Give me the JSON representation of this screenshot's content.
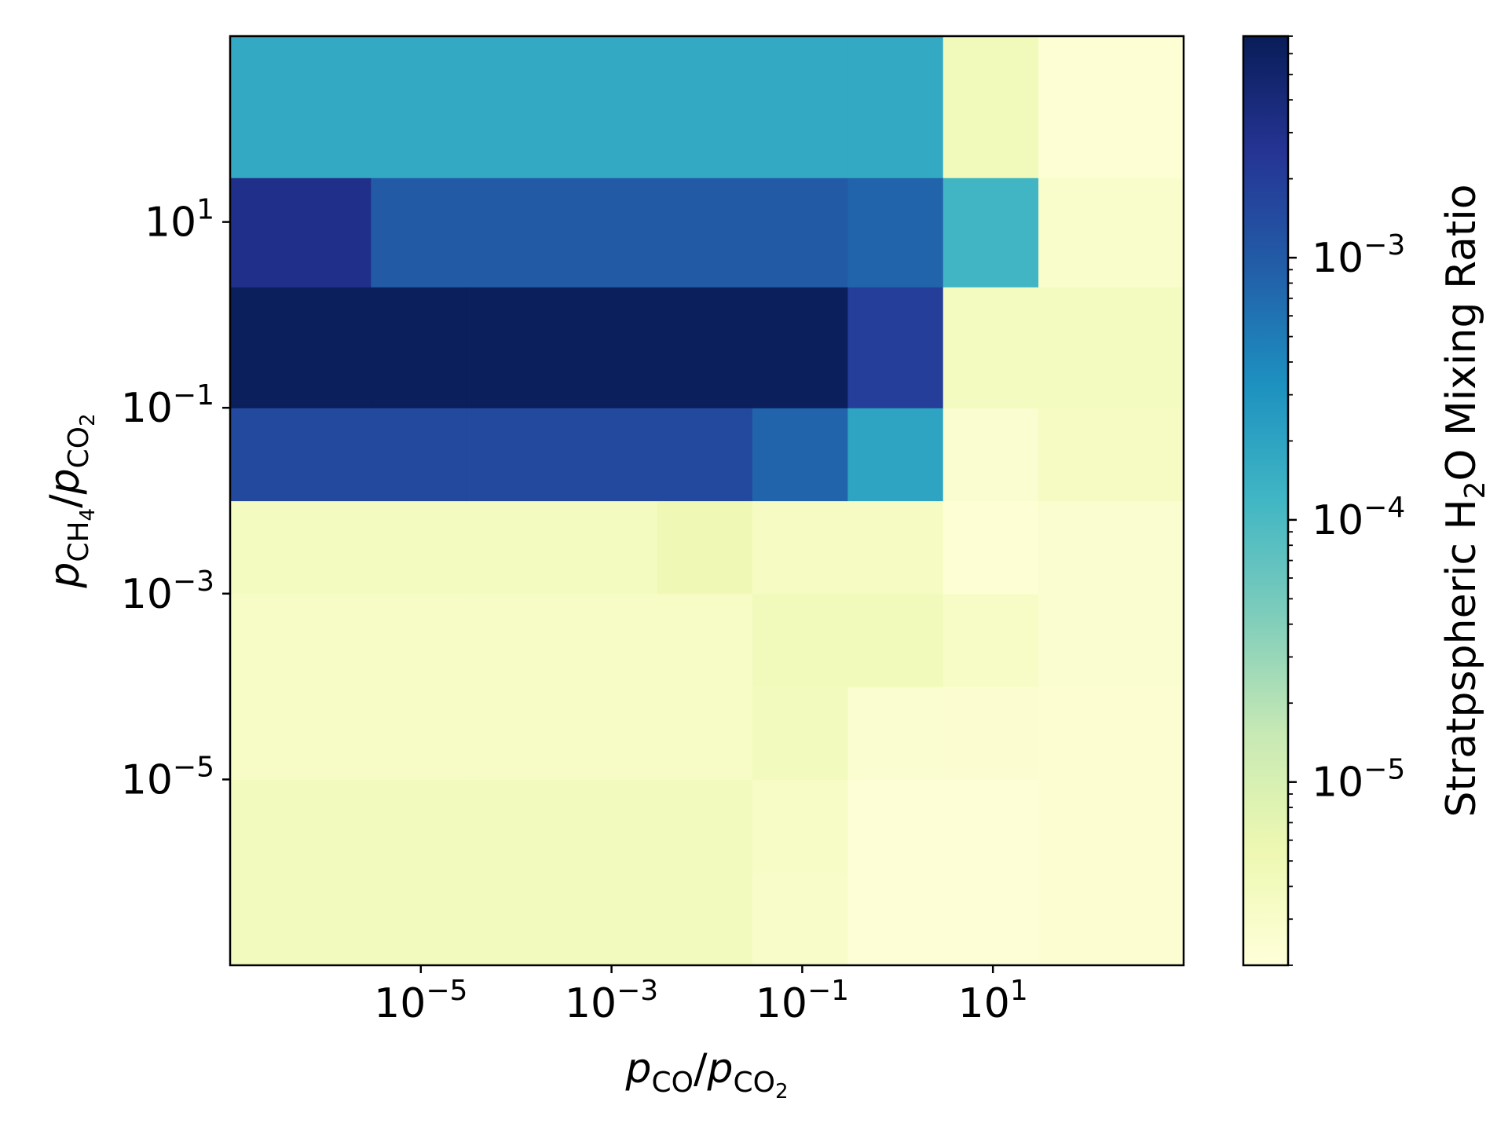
{
  "chart_data": {
    "type": "heatmap",
    "title": "",
    "colormap": "YlGnBu",
    "xlabel": {
      "base": "p",
      "num_sub": "CO",
      "den_sub": "CO",
      "den_sub2": "2",
      "sep": "/"
    },
    "ylabel": {
      "base": "p",
      "num_sub": "CH",
      "num_sub2": "4",
      "den_sub": "CO",
      "den_sub2": "2",
      "sep": "/"
    },
    "x_scale": "log",
    "y_scale": "log",
    "x_range": [
      1e-07,
      1000
    ],
    "y_range": [
      1e-07,
      1000
    ],
    "x_ticks": [
      {
        "value": 1e-05,
        "base": "10",
        "exp": "−5"
      },
      {
        "value": 0.001,
        "base": "10",
        "exp": "−3"
      },
      {
        "value": 0.1,
        "base": "10",
        "exp": "−1"
      },
      {
        "value": 10,
        "base": "10",
        "exp": "1"
      }
    ],
    "y_ticks": [
      {
        "value": 10,
        "base": "10",
        "exp": "1"
      },
      {
        "value": 0.1,
        "base": "10",
        "exp": "−1"
      },
      {
        "value": 0.001,
        "base": "10",
        "exp": "−3"
      },
      {
        "value": 1e-05,
        "base": "10",
        "exp": "−5"
      }
    ],
    "x_cell_edges": [
      1e-07,
      3e-06,
      3e-05,
      0.0003,
      0.003,
      0.03,
      0.3,
      3,
      30,
      1000
    ],
    "y_cell_edges": [
      1e-07,
      1e-06,
      1e-05,
      0.0001,
      0.001,
      0.01,
      0.1,
      2,
      30,
      1000
    ],
    "values_note_units": "stratospheric H2O mixing ratio",
    "z_rows_bottom_to_top": [
      [
        4e-06,
        4e-06,
        4e-06,
        4e-06,
        4e-06,
        3e-06,
        2.2e-06,
        2.2e-06,
        2.4e-06
      ],
      [
        4e-06,
        4e-06,
        4e-06,
        4e-06,
        4e-06,
        3.2e-06,
        2.2e-06,
        2.2e-06,
        2.4e-06
      ],
      [
        3.2e-06,
        3.2e-06,
        3.2e-06,
        3.2e-06,
        3.2e-06,
        4e-06,
        2.6e-06,
        2.5e-06,
        2.4e-06
      ],
      [
        3.2e-06,
        3.2e-06,
        3.2e-06,
        3.2e-06,
        3.2e-06,
        4.3e-06,
        4.3e-06,
        3.2e-06,
        2.6e-06
      ],
      [
        3.8e-06,
        3.8e-06,
        3.8e-06,
        3.8e-06,
        5e-06,
        3.6e-06,
        3.6e-06,
        2.3e-06,
        2.6e-06
      ],
      [
        0.0015,
        0.0015,
        0.0015,
        0.0015,
        0.0015,
        0.0008,
        0.0002,
        2.6e-06,
        3.6e-06
      ],
      [
        0.0065,
        0.0065,
        0.0065,
        0.0065,
        0.0065,
        0.0065,
        0.002,
        3.8e-06,
        3.8e-06
      ],
      [
        0.003,
        0.001,
        0.001,
        0.001,
        0.001,
        0.001,
        0.0008,
        0.00012,
        2.8e-06
      ],
      [
        0.00017,
        0.00017,
        0.00017,
        0.00017,
        0.00017,
        0.00017,
        0.00017,
        4.3e-06,
        2.3e-06
      ]
    ],
    "colorbar": {
      "label": {
        "pre": "Stratpspheric H",
        "sub": "2",
        "post": "O Mixing Ratio"
      },
      "scale": "log",
      "range": [
        2e-06,
        0.007
      ],
      "ticks": [
        {
          "value": 0.001,
          "base": "10",
          "exp": "−3"
        },
        {
          "value": 0.0001,
          "base": "10",
          "exp": "−4"
        },
        {
          "value": 1e-05,
          "base": "10",
          "exp": "−5"
        }
      ],
      "colormap_stops": [
        "#ffffd9",
        "#edf8b1",
        "#c7e9b4",
        "#7fcdbb",
        "#41b6c4",
        "#1d91c0",
        "#225ea8",
        "#253494",
        "#081d58"
      ]
    }
  }
}
